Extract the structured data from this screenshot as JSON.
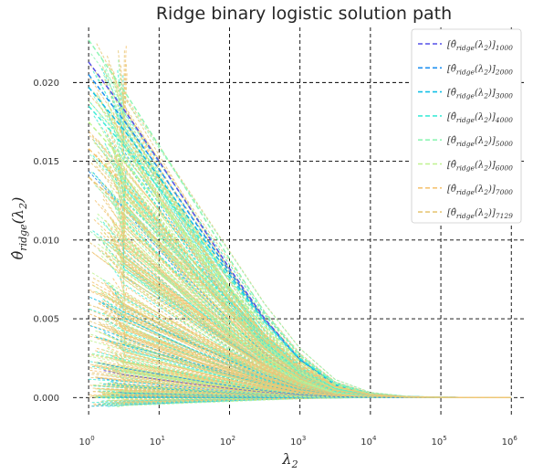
{
  "chart_data": {
    "type": "line",
    "title": "Ridge binary logistic solution path",
    "xlabel": "λ",
    "xlabel_sub": "2",
    "ylabel": "θ̂",
    "ylabel_sub": "ridge",
    "ylabel_suffix": "(λ",
    "ylabel_suffix_sub": "2",
    "ylabel_close": ")",
    "x_scale": "log",
    "xlim": [
      0.6,
      1600000
    ],
    "ylim": [
      -0.0012,
      0.0235
    ],
    "x_ticks": [
      {
        "value": 1,
        "base": "10",
        "exp": "0"
      },
      {
        "value": 10,
        "base": "10",
        "exp": "1"
      },
      {
        "value": 100,
        "base": "10",
        "exp": "2"
      },
      {
        "value": 1000,
        "base": "10",
        "exp": "3"
      },
      {
        "value": 10000,
        "base": "10",
        "exp": "4"
      },
      {
        "value": 100000,
        "base": "10",
        "exp": "5"
      },
      {
        "value": 1000000,
        "base": "10",
        "exp": "6"
      }
    ],
    "y_ticks": [
      {
        "value": 0.0,
        "label": "0.000"
      },
      {
        "value": 0.005,
        "label": "0.005"
      },
      {
        "value": 0.01,
        "label": "0.010"
      },
      {
        "value": 0.015,
        "label": "0.015"
      },
      {
        "value": 0.02,
        "label": "0.020"
      }
    ],
    "grid": true,
    "legend_position": "top-right",
    "x": [
      1,
      3.16,
      10,
      31.6,
      100,
      316,
      1000,
      3160,
      10000,
      31600,
      100000,
      316000,
      1000000
    ],
    "series": [
      {
        "name_prefix": "[θ̂",
        "name_mid": "ridge",
        "name_arg": "(λ",
        "name_arg_sub": "2",
        "name_close": ")]",
        "name_index": "1000",
        "color": "#5550e8",
        "values": [
          0.0213,
          0.0183,
          0.015,
          0.0116,
          0.0082,
          0.005,
          0.0024,
          0.0008,
          0.0002,
          5e-05,
          1e-05,
          0.0,
          0.0
        ]
      },
      {
        "name_prefix": "[θ̂",
        "name_mid": "ridge",
        "name_arg": "(λ",
        "name_arg_sub": "2",
        "name_close": ")]",
        "name_index": "2000",
        "color": "#1e90f0",
        "values": [
          0.0205,
          0.0176,
          0.0145,
          0.0112,
          0.008,
          0.0049,
          0.0024,
          0.0008,
          0.0002,
          5e-05,
          1e-05,
          0.0,
          0.0
        ]
      },
      {
        "name_prefix": "[θ̂",
        "name_mid": "ridge",
        "name_arg": "(λ",
        "name_arg_sub": "2",
        "name_close": ")]",
        "name_index": "3000",
        "color": "#12c0e6",
        "values": [
          0.0197,
          0.017,
          0.014,
          0.0109,
          0.0078,
          0.0048,
          0.0024,
          0.0008,
          0.00021,
          5e-05,
          1e-05,
          0.0,
          0.0
        ]
      },
      {
        "name_prefix": "[θ̂",
        "name_mid": "ridge",
        "name_arg": "(λ",
        "name_arg_sub": "2",
        "name_close": ")]",
        "name_index": "4000",
        "color": "#40ecd8",
        "values": [
          0.0185,
          0.016,
          0.0133,
          0.0105,
          0.0076,
          0.0048,
          0.0025,
          0.0009,
          0.00022,
          5e-05,
          1e-05,
          0.0,
          0.0
        ]
      },
      {
        "name_prefix": "[θ̂",
        "name_mid": "ridge",
        "name_arg": "(λ",
        "name_arg_sub": "2",
        "name_close": ")]",
        "name_index": "5000",
        "color": "#8ff5b4",
        "values": [
          0.0227,
          0.0195,
          0.016,
          0.0124,
          0.0088,
          0.0054,
          0.0027,
          0.0009,
          0.00022,
          5e-05,
          1e-05,
          0.0,
          0.0
        ]
      },
      {
        "name_prefix": "[θ̂",
        "name_mid": "ridge",
        "name_arg": "(λ",
        "name_arg_sub": "2",
        "name_close": ")]",
        "name_index": "6000",
        "color": "#bff290",
        "values": [
          0.0175,
          0.015,
          0.0124,
          0.0097,
          0.007,
          0.0045,
          0.0023,
          0.0008,
          0.0002,
          5e-05,
          1e-05,
          0.0,
          0.0
        ]
      },
      {
        "name_prefix": "[θ̂",
        "name_mid": "ridge",
        "name_arg": "(λ",
        "name_arg_sub": "2",
        "name_close": ")]",
        "name_index": "7000",
        "color": "#f5c473",
        "values": [
          0.0158,
          0.0135,
          0.0111,
          0.0086,
          0.0062,
          0.004,
          0.0021,
          0.0007,
          0.00019,
          4e-05,
          1e-05,
          0.0,
          0.0
        ]
      },
      {
        "name_prefix": "[θ̂",
        "name_mid": "ridge",
        "name_arg": "(λ",
        "name_arg_sub": "2",
        "name_close": ")]",
        "name_index": "7129",
        "color": "#e8c878",
        "values": [
          0.014,
          0.012,
          0.0099,
          0.0077,
          0.0056,
          0.0036,
          0.0019,
          0.0007,
          0.00018,
          4e-05,
          1e-05,
          0.0,
          0.0
        ]
      }
    ],
    "background_curves": {
      "note_colors": [
        "#5550e8",
        "#1e90f0",
        "#12c0e6",
        "#40ecd8",
        "#8ff5b4",
        "#bff290",
        "#f5c473",
        "#e8c878"
      ],
      "start_max": 0.0225,
      "count": 7129
    }
  }
}
